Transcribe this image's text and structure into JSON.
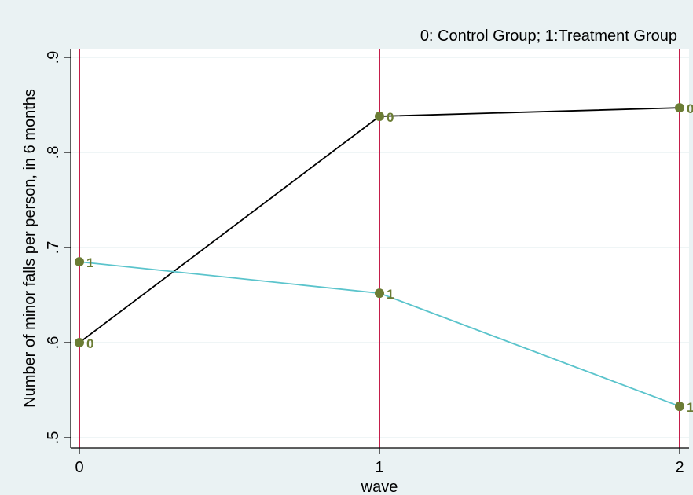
{
  "chart_data": {
    "type": "line",
    "note": "0: Control Group; 1:Treatment Group",
    "xlabel": "wave",
    "ylabel": "Number of minor falls per person, in 6 months",
    "x_ticks": [
      "0",
      "1",
      "2"
    ],
    "y_ticks": [
      ".5",
      ".6",
      ".7",
      ".8",
      ".9"
    ],
    "x_values": [
      0,
      1,
      2
    ],
    "xlim": [
      0,
      2
    ],
    "ylim": [
      0.5,
      0.9
    ],
    "grid": true,
    "vertical_reference_lines": [
      0,
      1,
      2
    ],
    "series": [
      {
        "point_label": "0",
        "values": [
          0.6,
          0.838,
          0.847
        ],
        "line_color": "#000000"
      },
      {
        "point_label": "1",
        "values": [
          0.685,
          0.652,
          0.533
        ],
        "line_color": "#5bc4cc"
      }
    ],
    "colors": {
      "plot_background": "#ffffff",
      "outer_background": "#eaf2f3",
      "grid": "#eaf2f3",
      "reference_line": "#c41e4a",
      "marker": "#6b7c34",
      "axis": "#000000"
    }
  }
}
